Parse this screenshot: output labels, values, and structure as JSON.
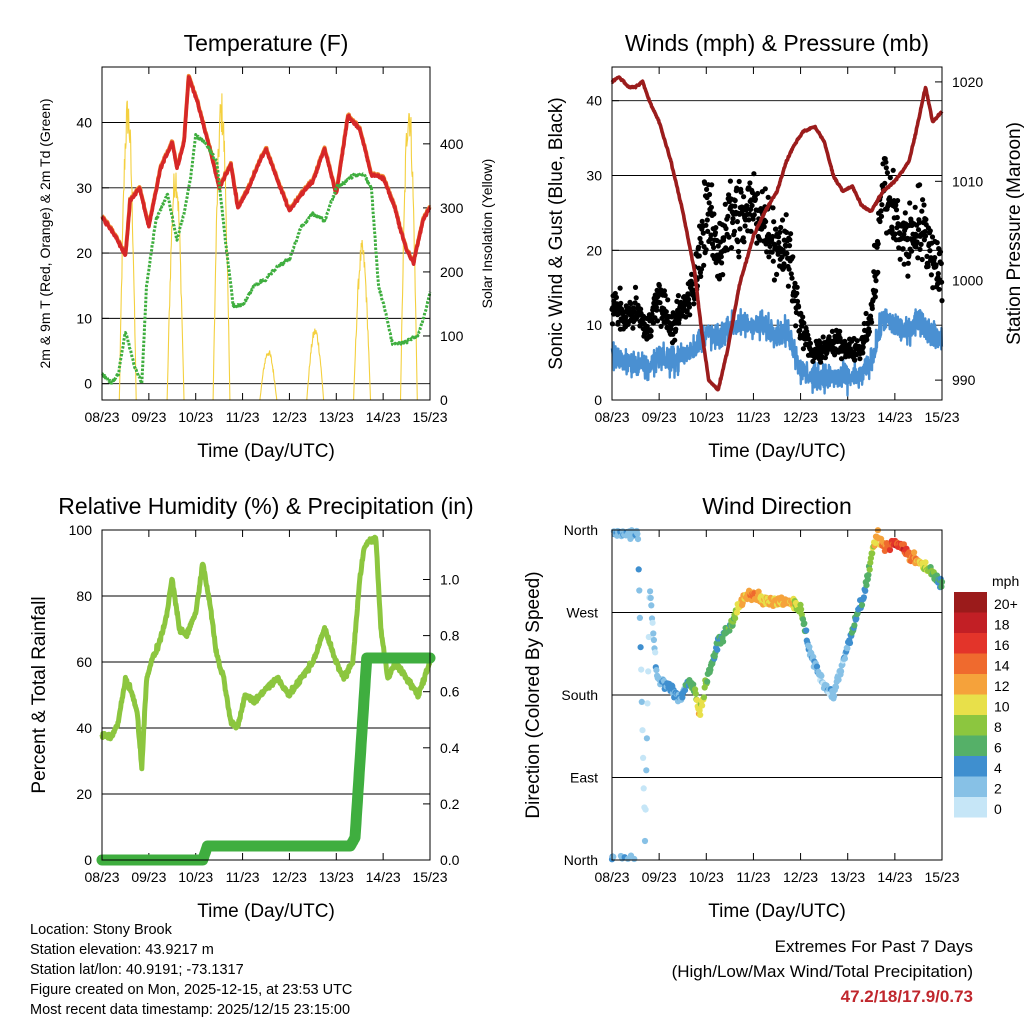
{
  "colors": {
    "temp2m": "#d62728",
    "temp9m": "#ef8a33",
    "dewpoint": "#3fae3f",
    "solar": "#f4d03f",
    "rh": "#8cc63f",
    "precip": "#3fae3f",
    "gust": "#000000",
    "wind": "#4a90d2",
    "pressure": "#9b1c1c",
    "extremes": "#c0272d"
  },
  "chart_data": [
    {
      "type": "line",
      "title": "Temperature (F)",
      "xlabel": "Time (Day/UTC)",
      "ylabel": "2m & 9m T (Red, Orange) & 2m Td (Green)",
      "ylabel_right": "Solar Insolation (Yellow)",
      "x_tick_labels": [
        "08/23",
        "09/23",
        "10/23",
        "11/23",
        "12/23",
        "13/23",
        "14/23",
        "15/23"
      ],
      "x_range_days": [
        0,
        7
      ],
      "ylim": [
        -2.5,
        48.5
      ],
      "yticks": [
        0,
        10,
        20,
        30,
        40
      ],
      "ylim_right": [
        0,
        520
      ],
      "yticks_right": [
        0,
        100,
        200,
        300,
        400
      ],
      "grid": "horizontal",
      "series": [
        {
          "name": "2m Temperature",
          "axis": "left",
          "color_key": "temp2m",
          "x": [
            0,
            0.3,
            0.5,
            0.6,
            0.8,
            1.0,
            1.25,
            1.5,
            1.6,
            1.75,
            1.85,
            2.0,
            2.3,
            2.5,
            2.75,
            2.9,
            3.1,
            3.3,
            3.5,
            3.75,
            4.0,
            4.25,
            4.5,
            4.75,
            5.0,
            5.25,
            5.5,
            5.75,
            6.0,
            6.25,
            6.35,
            6.5,
            6.65,
            6.85,
            7.0
          ],
          "values": [
            25.5,
            22.5,
            19.5,
            28,
            30,
            24,
            33,
            37,
            33,
            37,
            47,
            44,
            36,
            30,
            33.5,
            27,
            29.5,
            33,
            36,
            31,
            26.5,
            29,
            31,
            36,
            29,
            41,
            39,
            32,
            31.5,
            27,
            24,
            20.5,
            18.5,
            25,
            27
          ]
        },
        {
          "name": "2m Dewpoint",
          "axis": "left",
          "color_key": "dewpoint",
          "x": [
            0,
            0.2,
            0.35,
            0.5,
            0.7,
            0.85,
            0.95,
            1.15,
            1.4,
            1.6,
            1.75,
            1.9,
            2.0,
            2.2,
            2.45,
            2.65,
            2.8,
            3.0,
            3.25,
            3.5,
            3.75,
            4.0,
            4.25,
            4.5,
            4.75,
            5.0,
            5.2,
            5.4,
            5.6,
            5.75,
            5.9,
            6.05,
            6.2,
            6.5,
            6.75,
            6.9,
            7.0
          ],
          "values": [
            1.5,
            0,
            1.5,
            8,
            2.5,
            0,
            15,
            25,
            29,
            22,
            26,
            32,
            38,
            37,
            34,
            21,
            12,
            12,
            15,
            16,
            18,
            19,
            24,
            26,
            25,
            30,
            31,
            32,
            32,
            30,
            15,
            11,
            6,
            6.5,
            7.5,
            11,
            14
          ]
        }
      ],
      "solar_insolation": {
        "axis": "right",
        "color_key": "solar",
        "peaks": [
          {
            "day_center": 0.55,
            "peak": 480
          },
          {
            "day_center": 1.57,
            "peak": 375
          },
          {
            "day_center": 2.55,
            "peak": 485
          },
          {
            "day_center": 3.55,
            "peak": 80
          },
          {
            "day_center": 4.55,
            "peak": 115
          },
          {
            "day_center": 5.55,
            "peak": 250
          },
          {
            "day_center": 6.55,
            "peak": 485
          }
        ],
        "day_half_width": 0.18
      }
    },
    {
      "type": "scatter",
      "title": "Winds (mph) & Pressure (mb)",
      "xlabel": "Time (Day/UTC)",
      "ylabel": "Sonic Wind & Gust (Blue, Black)",
      "ylabel_right": "Station Pressure (Maroon)",
      "x_tick_labels": [
        "08/23",
        "09/23",
        "10/23",
        "11/23",
        "12/23",
        "13/23",
        "14/23",
        "15/23"
      ],
      "x_range_days": [
        0,
        7
      ],
      "ylim": [
        0,
        44.5
      ],
      "yticks": [
        0,
        10,
        20,
        30,
        40
      ],
      "ylim_right": [
        988,
        1021.5
      ],
      "yticks_right": [
        990,
        1000,
        1010,
        1020
      ],
      "grid": "horizontal",
      "series": [
        {
          "name": "Gust (points)",
          "axis": "left",
          "color_key": "gust",
          "x": [
            0,
            0.25,
            0.5,
            0.75,
            1.0,
            1.25,
            1.5,
            1.75,
            2.0,
            2.25,
            2.5,
            2.75,
            3.0,
            3.25,
            3.5,
            3.75,
            4.0,
            4.25,
            4.5,
            4.75,
            5.0,
            5.25,
            5.5,
            5.75,
            6.0,
            6.25,
            6.5,
            6.75,
            7.0
          ],
          "values": [
            13,
            11,
            12,
            9,
            14,
            10,
            12,
            15,
            26,
            19,
            25,
            24,
            26,
            24,
            21,
            20,
            10,
            6,
            7,
            7.5,
            7,
            6.5,
            11,
            29,
            24,
            21,
            24,
            20,
            17
          ]
        },
        {
          "name": "Sonic Wind",
          "axis": "left",
          "color_key": "wind",
          "x": [
            0,
            0.25,
            0.5,
            0.75,
            1.0,
            1.25,
            1.5,
            1.75,
            2.0,
            2.25,
            2.5,
            2.75,
            3.0,
            3.25,
            3.5,
            3.75,
            4.0,
            4.25,
            4.5,
            4.75,
            5.0,
            5.25,
            5.5,
            5.75,
            6.0,
            6.25,
            6.5,
            6.75,
            7.0
          ],
          "values": [
            6,
            5,
            5,
            4,
            6,
            5,
            6,
            7,
            9,
            8,
            10,
            10,
            10,
            10,
            9,
            9,
            4,
            3,
            3,
            3,
            3,
            3,
            5,
            11,
            10,
            9,
            11,
            9,
            8
          ]
        },
        {
          "name": "Station Pressure",
          "axis": "right",
          "color_key": "pressure",
          "x": [
            0,
            0.15,
            0.35,
            0.5,
            0.65,
            0.8,
            1.0,
            1.25,
            1.5,
            1.75,
            1.9,
            2.05,
            2.25,
            2.45,
            2.7,
            3.0,
            3.25,
            3.5,
            3.7,
            3.85,
            4.05,
            4.3,
            4.5,
            4.7,
            4.9,
            5.1,
            5.3,
            5.5,
            5.75,
            6.0,
            6.15,
            6.3,
            6.45,
            6.65,
            6.8,
            7.0
          ],
          "values": [
            1020,
            1020.5,
            1019.5,
            1019.5,
            1020,
            1018,
            1016,
            1012,
            1007,
            1001,
            995,
            990,
            989,
            993,
            999.5,
            1004.5,
            1007,
            1009,
            1012,
            1013.5,
            1015,
            1015.5,
            1014,
            1010.5,
            1009,
            1009.5,
            1007.5,
            1007,
            1009,
            1010,
            1011,
            1012,
            1015,
            1019.5,
            1016,
            1017
          ]
        }
      ]
    },
    {
      "type": "line",
      "title": "Relative Humidity (%) & Precipitation (in)",
      "xlabel": "Time (Day/UTC)",
      "ylabel": "Percent & Total Rainfall",
      "x_tick_labels": [
        "08/23",
        "09/23",
        "10/23",
        "11/23",
        "12/23",
        "13/23",
        "14/23",
        "15/23"
      ],
      "x_range_days": [
        0,
        7
      ],
      "ylim": [
        0,
        100
      ],
      "yticks": [
        0,
        20,
        40,
        60,
        80,
        100
      ],
      "ylim_right": [
        0,
        1.1765
      ],
      "yticks_right": [
        0.0,
        0.2,
        0.4,
        0.6,
        0.8,
        1.0
      ],
      "grid": "horizontal",
      "series": [
        {
          "name": "Relative Humidity",
          "axis": "left",
          "color_key": "rh",
          "x": [
            0,
            0.2,
            0.35,
            0.5,
            0.6,
            0.75,
            0.85,
            0.95,
            1.05,
            1.2,
            1.35,
            1.5,
            1.65,
            1.8,
            2.0,
            2.15,
            2.3,
            2.45,
            2.6,
            2.75,
            2.9,
            3.05,
            3.25,
            3.5,
            3.75,
            4.0,
            4.25,
            4.5,
            4.75,
            4.95,
            5.15,
            5.35,
            5.5,
            5.6,
            5.75,
            5.85,
            5.95,
            6.1,
            6.25,
            6.5,
            6.75,
            6.9,
            7.0
          ],
          "values": [
            38,
            37,
            42,
            55,
            52,
            45,
            28,
            55,
            60,
            65,
            72,
            85,
            70,
            68,
            75,
            90,
            78,
            62,
            55,
            42,
            40,
            50,
            48,
            52,
            55,
            50,
            55,
            60,
            70,
            62,
            55,
            60,
            85,
            95,
            97,
            97,
            70,
            55,
            60,
            55,
            50,
            56,
            60
          ]
        },
        {
          "name": "Total Precipitation",
          "axis": "right",
          "color_key": "precip",
          "x": [
            0,
            2.15,
            2.25,
            5.3,
            5.4,
            5.65,
            5.75,
            7.0
          ],
          "values": [
            0.0,
            0.0,
            0.05,
            0.05,
            0.08,
            0.72,
            0.72,
            0.72
          ]
        }
      ]
    },
    {
      "type": "scatter",
      "title": "Wind Direction",
      "xlabel": "Time (Day/UTC)",
      "ylabel": "Direction (Colored By Speed)",
      "x_tick_labels": [
        "08/23",
        "09/23",
        "10/23",
        "11/23",
        "12/23",
        "13/23",
        "14/23",
        "15/23"
      ],
      "x_range_days": [
        0,
        7
      ],
      "direction_ticks": [
        "North",
        "East",
        "South",
        "West",
        "North"
      ],
      "ylim_degrees": [
        0,
        360
      ],
      "grid": "horizontal",
      "colorbar": {
        "title": "mph",
        "labels": [
          "0",
          "2",
          "4",
          "6",
          "8",
          "10",
          "12",
          "14",
          "16",
          "18",
          "20+"
        ],
        "colors": [
          "#c6e6f7",
          "#87c1e6",
          "#3f8fcf",
          "#55b068",
          "#8cc63f",
          "#e8e04a",
          "#f5a23b",
          "#ef6a2e",
          "#e3342a",
          "#c21f25",
          "#9b1b1b"
        ]
      },
      "points_summary": {
        "x": [
          0.05,
          0.3,
          0.55,
          0.7,
          0.8,
          0.95,
          1.2,
          1.45,
          1.6,
          1.75,
          1.85,
          2.05,
          2.25,
          2.5,
          2.75,
          3.0,
          3.25,
          3.5,
          3.75,
          4.0,
          4.2,
          4.45,
          4.7,
          4.9,
          5.1,
          5.35,
          5.6,
          5.8,
          6.0,
          6.25,
          6.5,
          6.75,
          6.95
        ],
        "direction_deg": [
          358,
          359,
          357,
          20,
          300,
          200,
          190,
          175,
          195,
          185,
          160,
          205,
          235,
          255,
          283,
          290,
          285,
          282,
          285,
          275,
          225,
          195,
          180,
          215,
          250,
          290,
          355,
          340,
          350,
          335,
          325,
          315,
          300
        ],
        "speed_mph": [
          4,
          3,
          4,
          2,
          2,
          3,
          5,
          4,
          6,
          8,
          12,
          7,
          6,
          7,
          12,
          14,
          12,
          12,
          13,
          8,
          4,
          3,
          3,
          3,
          6,
          5,
          12,
          14,
          17,
          16,
          12,
          9,
          6
        ]
      }
    }
  ],
  "info": {
    "location": "Location: Stony Brook",
    "elevation": "Station elevation: 43.9217 m",
    "latlon": "Station lat/lon: 40.9191; -73.1317",
    "created": "Figure created on Mon, 2025-12-15, at 23:53 UTC",
    "recent": "Most recent data timestamp: 2025/12/15 23:15:00"
  },
  "extremes": {
    "title": "Extremes For Past 7 Days",
    "subtitle": "(High/Low/Max Wind/Total Precipitation)",
    "values": "47.2/18/17.9/0.73"
  }
}
